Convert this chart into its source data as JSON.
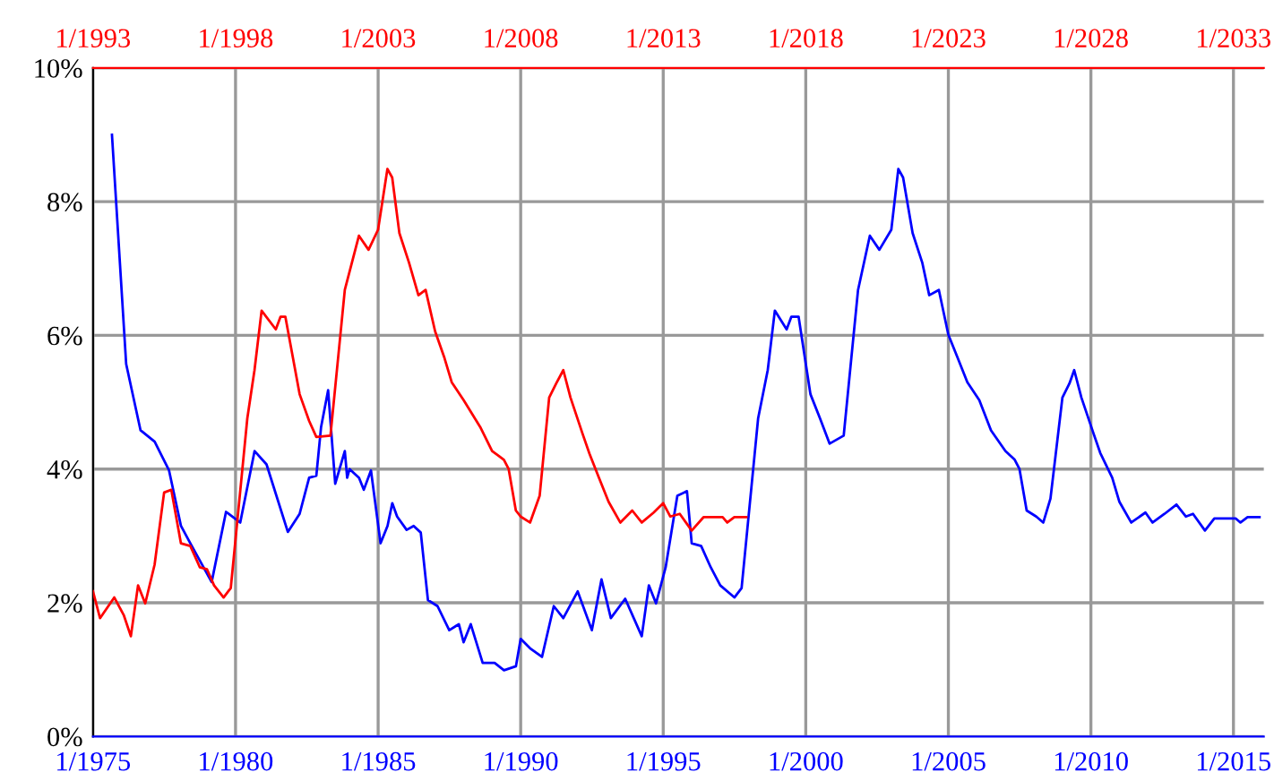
{
  "chart_data": {
    "type": "line",
    "xlim": [
      "1975-01",
      "2016-01-25"
    ],
    "xticks": [
      {
        "value": "1975-01",
        "label": "1/1975"
      },
      {
        "value": "1980-01",
        "label": "1/1980"
      },
      {
        "value": "1985-01",
        "label": "1/1985"
      },
      {
        "value": "1990-01",
        "label": "1/1990"
      },
      {
        "value": "1995-01",
        "label": "1/1995"
      },
      {
        "value": "2000-01",
        "label": "1/2000"
      },
      {
        "value": "2005-01",
        "label": "1/2005"
      },
      {
        "value": "2010-01",
        "label": "1/2010"
      },
      {
        "value": "2015-01",
        "label": "1/2015"
      }
    ],
    "x2lim": [
      "1993-01",
      "2034-01-25"
    ],
    "x2ticks": [
      {
        "value": "1993-01",
        "label": "1/1993"
      },
      {
        "value": "1998-01",
        "label": "1/1998"
      },
      {
        "value": "2003-01",
        "label": "1/2003"
      },
      {
        "value": "2008-01",
        "label": "1/2008"
      },
      {
        "value": "2013-01",
        "label": "1/2013"
      },
      {
        "value": "2018-01",
        "label": "1/2018"
      },
      {
        "value": "2023-01",
        "label": "1/2023"
      },
      {
        "value": "2028-01",
        "label": "1/2028"
      },
      {
        "value": "2033-01",
        "label": "1/2033"
      }
    ],
    "ylim": [
      0,
      10
    ],
    "yticks": [
      {
        "value": 0,
        "label": "0%"
      },
      {
        "value": 2,
        "label": "2%"
      },
      {
        "value": 4,
        "label": "4%"
      },
      {
        "value": 6,
        "label": "6%"
      },
      {
        "value": 8,
        "label": "8%"
      },
      {
        "value": 10,
        "label": "10%"
      }
    ],
    "grid": true,
    "series": [
      {
        "color": "#0000ff",
        "x": [
          "1975-09",
          "1976-03",
          "1976-09",
          "1977-03",
          "1977-09",
          "1978-02",
          "1978-06",
          "1979-03",
          "1979-09",
          "1980-03",
          "1980-09",
          "1981-02",
          "1981-11",
          "1982-04",
          "1982-08",
          "1982-11",
          "1983-01",
          "1983-04",
          "1983-07",
          "1983-11",
          "1983-12",
          "1984-01",
          "1984-05",
          "1984-07",
          "1984-10",
          "1985-02",
          "1985-05",
          "1985-07",
          "1985-09",
          "1986-01",
          "1986-04",
          "1986-07",
          "1986-10",
          "1987-02",
          "1987-07",
          "1987-11",
          "1988-01",
          "1988-04",
          "1988-09",
          "1989-02",
          "1989-06",
          "1989-11",
          "1990-01",
          "1990-05",
          "1990-10",
          "1991-03",
          "1991-07",
          "1992-01",
          "1992-07",
          "1992-11",
          "1993-03",
          "1993-09",
          "1994-04",
          "1994-07",
          "1994-10",
          "1995-02",
          "1995-07",
          "1995-11",
          "1996-01",
          "1996-05",
          "1996-09",
          "1997-01",
          "1997-07",
          "1997-10",
          "1998-05",
          "1998-09",
          "1998-12",
          "1999-05",
          "1999-07",
          "1999-10",
          "2000-03",
          "2000-07",
          "2000-11",
          "2001-05",
          "2001-11",
          "2002-04",
          "2002-08",
          "2003-01",
          "2003-04",
          "2003-06",
          "2003-10",
          "2004-02",
          "2004-05",
          "2004-09",
          "2005-01",
          "2005-05",
          "2005-09",
          "2006-02",
          "2006-07",
          "2007-01",
          "2007-05",
          "2007-07",
          "2007-10",
          "2008-02",
          "2008-05",
          "2008-08",
          "2009-01",
          "2009-04",
          "2009-06",
          "2009-09",
          "2010-02",
          "2010-05",
          "2010-10",
          "2011-01",
          "2011-06",
          "2011-12",
          "2012-03",
          "2012-08",
          "2013-01",
          "2013-05",
          "2013-08",
          "2014-01",
          "2014-05",
          "2015-02",
          "2015-04",
          "2015-07",
          "2015-12"
        ],
        "values": [
          9.0,
          5.57,
          4.58,
          4.41,
          3.98,
          3.15,
          2.89,
          2.31,
          3.36,
          3.2,
          4.27,
          4.07,
          3.06,
          3.33,
          3.87,
          3.9,
          4.63,
          5.18,
          3.78,
          4.27,
          3.87,
          4.0,
          3.87,
          3.69,
          3.98,
          2.89,
          3.15,
          3.49,
          3.29,
          3.09,
          3.15,
          3.05,
          2.04,
          1.95,
          1.59,
          1.68,
          1.41,
          1.68,
          1.1,
          1.1,
          0.99,
          1.05,
          1.46,
          1.32,
          1.19,
          1.95,
          1.77,
          2.17,
          1.59,
          2.35,
          1.77,
          2.06,
          1.5,
          2.26,
          1.99,
          2.53,
          3.6,
          3.67,
          2.89,
          2.85,
          2.53,
          2.26,
          2.08,
          2.22,
          4.76,
          5.48,
          6.37,
          6.09,
          6.28,
          6.28,
          5.12,
          4.76,
          4.38,
          4.5,
          6.68,
          7.49,
          7.28,
          7.58,
          8.49,
          8.36,
          7.53,
          7.09,
          6.6,
          6.68,
          6.01,
          5.66,
          5.3,
          5.03,
          4.58,
          4.27,
          4.14,
          4.0,
          3.38,
          3.29,
          3.2,
          3.56,
          5.07,
          5.28,
          5.48,
          5.07,
          4.54,
          4.24,
          3.87,
          3.51,
          3.2,
          3.35,
          3.2,
          3.33,
          3.47,
          3.29,
          3.33,
          3.08,
          3.26,
          3.26,
          3.2,
          3.28,
          3.28
        ]
      },
      {
        "color": "#ff0000",
        "axis": "x2",
        "x": [
          "1993-01",
          "1993-04",
          "1993-10",
          "1994-02",
          "1994-05",
          "1994-08",
          "1994-11",
          "1995-03",
          "1995-07",
          "1995-10",
          "1996-02",
          "1996-06",
          "1996-10",
          "1997-01",
          "1997-04",
          "1997-08",
          "1997-11",
          "1998-06",
          "1998-09",
          "1998-12",
          "1999-06",
          "1999-08",
          "1999-10",
          "2000-04",
          "2000-08",
          "2000-11",
          "2001-05",
          "2001-11",
          "2002-05",
          "2002-09",
          "2003-01",
          "2003-05",
          "2003-07",
          "2003-10",
          "2004-02",
          "2004-06",
          "2004-09",
          "2005-01",
          "2005-05",
          "2005-08",
          "2006-01",
          "2006-08",
          "2007-01",
          "2007-06",
          "2007-08",
          "2007-11",
          "2008-01",
          "2008-05",
          "2008-09",
          "2009-01",
          "2009-04",
          "2009-07",
          "2009-10",
          "2010-03",
          "2010-06",
          "2010-10",
          "2011-02",
          "2011-07",
          "2011-12",
          "2012-04",
          "2012-09",
          "2013-01",
          "2013-04",
          "2013-08",
          "2014-01",
          "2014-06",
          "2015-02",
          "2015-04",
          "2015-07",
          "2015-12"
        ],
        "values": [
          2.17,
          1.77,
          2.08,
          1.81,
          1.5,
          2.26,
          1.99,
          2.57,
          3.65,
          3.69,
          2.89,
          2.85,
          2.53,
          2.5,
          2.26,
          2.08,
          2.22,
          4.76,
          5.48,
          6.37,
          6.09,
          6.28,
          6.28,
          5.12,
          4.72,
          4.48,
          4.5,
          6.68,
          7.49,
          7.28,
          7.58,
          8.49,
          8.36,
          7.53,
          7.09,
          6.6,
          6.68,
          6.06,
          5.66,
          5.3,
          5.03,
          4.63,
          4.27,
          4.14,
          4.0,
          3.38,
          3.29,
          3.2,
          3.6,
          5.07,
          5.28,
          5.48,
          5.07,
          4.54,
          4.23,
          3.87,
          3.51,
          3.2,
          3.38,
          3.2,
          3.35,
          3.49,
          3.29,
          3.33,
          3.08,
          3.28,
          3.28,
          3.2,
          3.28,
          3.28
        ]
      }
    ]
  }
}
